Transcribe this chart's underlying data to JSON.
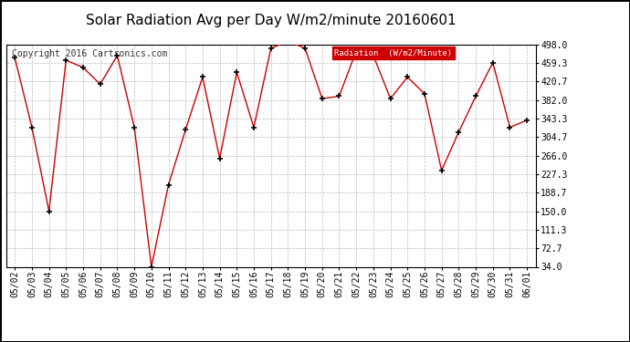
{
  "title": "Solar Radiation Avg per Day W/m2/minute 20160601",
  "copyright": "Copyright 2016 Cartronics.com",
  "legend_label": "Radiation  (W/m2/Minute)",
  "dates": [
    "05/02",
    "05/03",
    "05/04",
    "05/05",
    "05/06",
    "05/07",
    "05/08",
    "05/09",
    "05/10",
    "05/11",
    "05/12",
    "05/13",
    "05/14",
    "05/15",
    "05/16",
    "05/17",
    "05/18",
    "05/19",
    "05/20",
    "05/21",
    "05/22",
    "05/23",
    "05/24",
    "05/25",
    "05/26",
    "05/27",
    "05/28",
    "05/29",
    "05/30",
    "05/31",
    "06/01"
  ],
  "values": [
    470,
    325,
    150,
    465,
    450,
    415,
    475,
    325,
    34,
    205,
    320,
    430,
    260,
    440,
    325,
    490,
    505,
    490,
    385,
    390,
    485,
    475,
    385,
    430,
    395,
    235,
    315,
    390,
    460,
    325,
    340
  ],
  "line_color": "#cc0000",
  "marker_color": "#000000",
  "bg_color": "#ffffff",
  "grid_color": "#aaaaaa",
  "yticks": [
    34.0,
    72.7,
    111.3,
    150.0,
    188.7,
    227.3,
    266.0,
    304.7,
    343.3,
    382.0,
    420.7,
    459.3,
    498.0
  ],
  "ylim": [
    34.0,
    498.0
  ],
  "title_fontsize": 11,
  "copyright_fontsize": 7,
  "tick_fontsize": 7,
  "legend_bg": "#cc0000",
  "legend_text_color": "#ffffff",
  "border_color": "#000000"
}
